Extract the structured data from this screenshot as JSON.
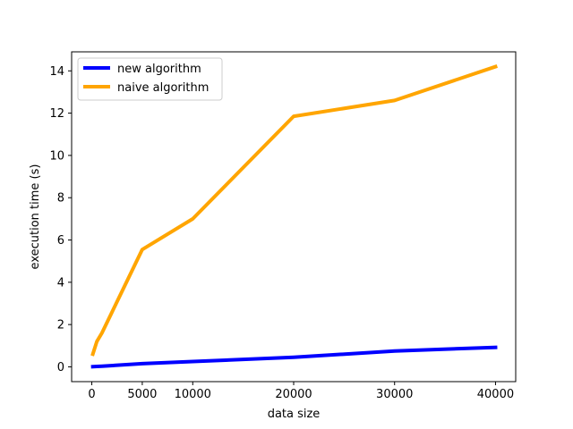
{
  "chart_data": {
    "type": "line",
    "title": "",
    "xlabel": "data size",
    "ylabel": "execution time (s)",
    "xlim": [
      -2000,
      42000
    ],
    "ylim": [
      -0.7,
      14.9
    ],
    "xticks": [
      0,
      5000,
      10000,
      20000,
      30000,
      40000
    ],
    "yticks": [
      0,
      2,
      4,
      6,
      8,
      10,
      12,
      14
    ],
    "grid": false,
    "legend_position": "top-left",
    "series": [
      {
        "name": "new algorithm",
        "color": "#0000ff",
        "x": [
          100,
          500,
          1000,
          5000,
          10000,
          20000,
          30000,
          40000
        ],
        "y": [
          0.01,
          0.02,
          0.03,
          0.15,
          0.25,
          0.45,
          0.75,
          0.92
        ]
      },
      {
        "name": "naive algorithm",
        "color": "#ffa500",
        "x": [
          100,
          500,
          1000,
          5000,
          10000,
          20000,
          30000,
          40000
        ],
        "y": [
          0.6,
          1.2,
          1.6,
          5.55,
          7.0,
          11.85,
          12.6,
          14.2
        ]
      }
    ]
  }
}
